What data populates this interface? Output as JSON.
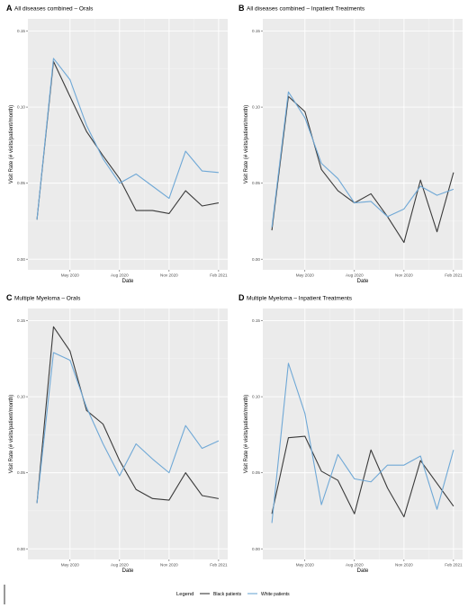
{
  "colors": {
    "panel_bg": "#ebebeb",
    "grid_major": "#ffffff",
    "grid_minor": "#f5f5f5",
    "black_series": "#3a3a3a",
    "white_series": "#6fa8d6"
  },
  "legend": {
    "title": "Legend",
    "position": "bottom",
    "entries": [
      "Black patients",
      "White patients"
    ]
  },
  "chart_data": [
    {
      "type": "line",
      "panel": "A",
      "title": "All diseases combined – Orals",
      "xlabel": "Date",
      "ylabel": "Visit Rate (# visits/patient/month)",
      "x_ticks": [
        "May 2020",
        "Aug 2020",
        "Nov 2020",
        "Feb 2021"
      ],
      "y_ticks": [
        "0.00",
        "0.05",
        "0.10",
        "0.15"
      ],
      "ylim": [
        -0.007,
        0.158
      ],
      "x": [
        "2020-03",
        "2020-04",
        "2020-05",
        "2020-06",
        "2020-07",
        "2020-08",
        "2020-09",
        "2020-10",
        "2020-11",
        "2020-12",
        "2021-01",
        "2021-02"
      ],
      "series": [
        {
          "name": "Black patients",
          "values": [
            0.026,
            0.13,
            0.107,
            0.084,
            0.068,
            0.053,
            0.032,
            0.032,
            0.03,
            0.045,
            0.035,
            0.037
          ]
        },
        {
          "name": "White patients",
          "values": [
            0.026,
            0.132,
            0.118,
            0.088,
            0.066,
            0.05,
            0.056,
            0.048,
            0.04,
            0.071,
            0.058,
            0.057
          ]
        }
      ]
    },
    {
      "type": "line",
      "panel": "B",
      "title": "All diseases combined – Inpatient Treatments",
      "xlabel": "Date",
      "ylabel": "Visit Rate (# visits/patient/month)",
      "x_ticks": [
        "May 2020",
        "Aug 2020",
        "Nov 2020",
        "Feb 2021"
      ],
      "y_ticks": [
        "0.00",
        "0.05",
        "0.10",
        "0.15"
      ],
      "ylim": [
        -0.007,
        0.158
      ],
      "x": [
        "2020-03",
        "2020-04",
        "2020-05",
        "2020-06",
        "2020-07",
        "2020-08",
        "2020-09",
        "2020-10",
        "2020-11",
        "2020-12",
        "2021-01",
        "2021-02"
      ],
      "series": [
        {
          "name": "Black patients",
          "values": [
            0.019,
            0.107,
            0.097,
            0.059,
            0.045,
            0.037,
            0.043,
            0.028,
            0.011,
            0.052,
            0.018,
            0.057
          ]
        },
        {
          "name": "White patients",
          "values": [
            0.021,
            0.11,
            0.093,
            0.063,
            0.053,
            0.037,
            0.038,
            0.028,
            0.033,
            0.048,
            0.042,
            0.046
          ]
        }
      ]
    },
    {
      "type": "line",
      "panel": "C",
      "title": "Multiple Myeloma – Orals",
      "xlabel": "Date",
      "ylabel": "Visit Rate (# visits/patient/month)",
      "x_ticks": [
        "May 2020",
        "Aug 2020",
        "Nov 2020",
        "Feb 2021"
      ],
      "y_ticks": [
        "0.00",
        "0.05",
        "0.10",
        "0.15"
      ],
      "ylim": [
        -0.007,
        0.158
      ],
      "x": [
        "2020-03",
        "2020-04",
        "2020-05",
        "2020-06",
        "2020-07",
        "2020-08",
        "2020-09",
        "2020-10",
        "2020-11",
        "2020-12",
        "2021-01",
        "2021-02"
      ],
      "series": [
        {
          "name": "Black patients",
          "values": [
            0.03,
            0.146,
            0.13,
            0.091,
            0.082,
            0.058,
            0.039,
            0.033,
            0.032,
            0.05,
            0.035,
            0.033
          ]
        },
        {
          "name": "White patients",
          "values": [
            0.03,
            0.129,
            0.124,
            0.093,
            0.069,
            0.048,
            0.069,
            0.059,
            0.05,
            0.081,
            0.066,
            0.071
          ]
        }
      ]
    },
    {
      "type": "line",
      "panel": "D",
      "title": "Multiple Myeloma – Inpatient Treatments",
      "xlabel": "Date",
      "ylabel": "Visit Rate (# visits/patient/month)",
      "x_ticks": [
        "May 2020",
        "Aug 2020",
        "Nov 2020",
        "Feb 2021"
      ],
      "y_ticks": [
        "0.00",
        "0.05",
        "0.10",
        "0.15"
      ],
      "ylim": [
        -0.007,
        0.158
      ],
      "x": [
        "2020-03",
        "2020-04",
        "2020-05",
        "2020-06",
        "2020-07",
        "2020-08",
        "2020-09",
        "2020-10",
        "2020-11",
        "2020-12",
        "2021-01",
        "2021-02",
        "2021-03"
      ],
      "series": [
        {
          "name": "Black patients",
          "values": [
            0.023,
            0.073,
            0.074,
            0.051,
            0.045,
            0.023,
            0.065,
            0.04,
            0.021,
            0.058,
            0.043,
            0.028,
            null
          ]
        },
        {
          "name": "White patients",
          "values": [
            0.017,
            0.122,
            0.089,
            0.029,
            0.062,
            0.046,
            0.044,
            0.055,
            0.055,
            0.061,
            0.026,
            0.065,
            null
          ]
        }
      ]
    }
  ]
}
